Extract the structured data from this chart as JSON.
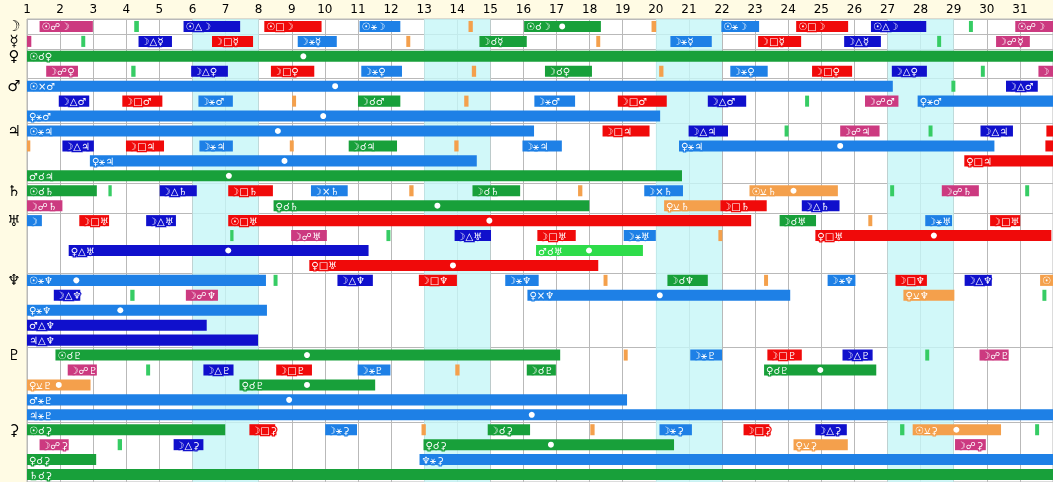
{
  "chart_data": {
    "type": "bar",
    "orientation": "horizontal",
    "categories": [
      "☽",
      "☿",
      "♀",
      null,
      "♂",
      null,
      null,
      "♃",
      null,
      null,
      null,
      "♄",
      null,
      "♅",
      null,
      null,
      null,
      "♆",
      null,
      null,
      null,
      null,
      "♇",
      null,
      null,
      null,
      null,
      "⚳",
      null,
      null,
      null
    ],
    "xlim": [
      1,
      32
    ],
    "xticks": [
      1,
      2,
      3,
      4,
      5,
      6,
      7,
      8,
      9,
      10,
      11,
      12,
      13,
      14,
      15,
      16,
      17,
      18,
      19,
      20,
      21,
      22,
      23,
      24,
      25,
      26,
      27,
      28,
      29,
      30,
      31
    ],
    "grid": true,
    "bands": [
      {
        "axis": "x",
        "from": 6,
        "to": 8,
        "color": "#c6f6f8"
      },
      {
        "axis": "x",
        "from": 13,
        "to": 15,
        "color": "#c6f6f8"
      },
      {
        "axis": "x",
        "from": 20,
        "to": 22,
        "color": "#c6f6f8"
      },
      {
        "axis": "x",
        "from": 27,
        "to": 29,
        "color": "#c6f6f8"
      }
    ],
    "series": [
      {
        "base": [
          1.38,
          1,
          1,
          1.58,
          1,
          1.96,
          1,
          1,
          1,
          2.9,
          1,
          1,
          1,
          1,
          7.14,
          2.26,
          9.53,
          1,
          1.81,
          1,
          1,
          1,
          1.86,
          2.23,
          1,
          1,
          1,
          1,
          1.38,
          1,
          1
        ],
        "values": [
          1.61,
          0.13,
          31,
          0.96,
          26.16,
          0.92,
          19.13,
          15.32,
          0.1,
          11.69,
          19.79,
          2.11,
          1.07,
          0.45,
          0.1,
          9.06,
          8.73,
          7.22,
          0.8,
          7.25,
          5.43,
          6.98,
          15.25,
          0.88,
          1.92,
          18.13,
          31,
          5.99,
          0.88,
          2.09,
          31
        ],
        "colors": [
          "#cc3a80",
          "#cc3a80",
          "#18a03a",
          "#cc3a80",
          "#1e80e6",
          "#1010cc",
          "#1e80e6",
          "#1e80e6",
          "#f4a04c",
          "#1e80e6",
          "#18a03a",
          "#18a03a",
          "#cc3a80",
          "#1e80e6",
          "#36cc64",
          "#1010cc",
          "#f00a0a",
          "#1e80e6",
          "#1010cc",
          "#1e80e6",
          "#1010cc",
          "#1010cc",
          "#18a03a",
          "#cc3a80",
          "#f4a04c",
          "#1e80e6",
          "#1e80e6",
          "#18a03a",
          "#cc3a80",
          "#18a03a",
          "#18a03a"
        ],
        "value_labels": [
          "☉☍☽",
          null,
          "☉☌♀",
          "☽☍♀",
          "☉×♂",
          "☽△♂",
          "♀⚹♂",
          "☉⚹♃",
          null,
          "♀⚹♃",
          "♂☌♃",
          "☉☌♄",
          "☽☍♄",
          "☽",
          null,
          "♀△♅",
          "♀□♅",
          "☉⚹♆",
          "☽△♆",
          "♀⚹♆",
          "♂△♆",
          "♃△♆",
          "☉☌♇",
          "☽☍♇",
          "♀⚺♇",
          "♂⚹♇",
          "♃⚹♇",
          "☉☌⚳",
          "☽☍⚳",
          "♀☌⚳",
          "♄☌⚳"
        ]
      },
      {
        "base": [
          4.24,
          2.64,
          null,
          4.15,
          28.93,
          3.88,
          null,
          18.39,
          2.07,
          29.32,
          null,
          3.46,
          8.45,
          2.58,
          8.98,
          16.38,
          null,
          8.45,
          4.12,
          null,
          null,
          null,
          19.03,
          4.6,
          7.42,
          null,
          null,
          7.72,
          3.74,
          12.86,
          null
        ],
        "values": [
          0.14,
          0.12,
          null,
          0.13,
          0.12,
          1.21,
          null,
          1.42,
          0.95,
          2.68,
          null,
          0.1,
          9.54,
          0.9,
          1.08,
          3.23,
          null,
          0.12,
          0.13,
          null,
          null,
          null,
          0.12,
          0.12,
          4.1,
          null,
          null,
          0.78,
          0.13,
          19.14,
          null
        ],
        "colors": [
          "#36cc64",
          "#36cc64",
          null,
          "#36cc64",
          "#36cc64",
          "#f00a0a",
          null,
          "#f00a0a",
          "#1010cc",
          "#f00a0a",
          null,
          "#36cc64",
          "#18a03a",
          "#f00a0a",
          "#cc3a80",
          "#2edc4a",
          null,
          "#36cc64",
          "#36cc64",
          null,
          null,
          null,
          "#f4a04c",
          "#36cc64",
          "#18a03a",
          null,
          null,
          "#f00a0a",
          "#36cc64",
          "#1e80e6",
          null
        ],
        "value_labels": [
          null,
          null,
          null,
          null,
          null,
          "☽□♂",
          null,
          "☽□♃",
          "☽△♃",
          "♀□♃",
          null,
          null,
          "♀☌♄",
          "☽□♅",
          "☽☍♅",
          "♂☌♅",
          null,
          null,
          null,
          null,
          null,
          null,
          null,
          null,
          "♀☌♇",
          null,
          null,
          "☽□⚳",
          null,
          "♆⚹⚳",
          null
        ]
      },
      {
        "base": [
          5.73,
          4.37,
          null,
          5.96,
          30.58,
          6.18,
          null,
          20.99,
          3.99,
          null,
          null,
          5.01,
          20.25,
          4.6,
          11.86,
          null,
          null,
          10.38,
          5.8,
          null,
          null,
          null,
          21.04,
          6.33,
          null,
          null,
          null,
          10.01,
          5.43,
          null,
          null
        ],
        "values": [
          1.71,
          1.01,
          null,
          1.11,
          0.96,
          1.04,
          null,
          1.19,
          1.15,
          null,
          null,
          1.12,
          1.7,
          0.9,
          0.12,
          null,
          null,
          1.07,
          0.97,
          null,
          null,
          null,
          0.96,
          0.91,
          null,
          null,
          null,
          0.96,
          0.9,
          null,
          null
        ],
        "colors": [
          "#1010cc",
          "#1010cc",
          null,
          "#1010cc",
          "#1010cc",
          "#1e80e6",
          null,
          "#1010cc",
          "#f00a0a",
          null,
          null,
          "#1010cc",
          "#f4a04c",
          "#1010cc",
          "#36cc64",
          null,
          null,
          "#1010cc",
          "#cc3a80",
          null,
          null,
          null,
          "#1e80e6",
          "#1010cc",
          null,
          null,
          null,
          "#1e80e6",
          "#1010cc",
          null,
          null
        ],
        "value_labels": [
          "☉△☽",
          "☽△☿",
          null,
          "☽△♀",
          "☽△♂",
          "☽⚹♂",
          null,
          "☽△♃",
          "☽□♃",
          null,
          null,
          "☽△♄",
          "♀⚺♄",
          "☽△♅",
          null,
          null,
          null,
          "☽△♆",
          "☽☍♆",
          null,
          null,
          null,
          "☽⚹♇",
          "☽△♇",
          null,
          null,
          null,
          "☽⚹⚳",
          "☽△⚳",
          null,
          null
        ]
      },
      {
        "base": [
          8.17,
          6.59,
          null,
          8.37,
          null,
          9.01,
          null,
          23.89,
          6.21,
          null,
          null,
          7.08,
          21.95,
          7.08,
          13.92,
          null,
          null,
          12.84,
          16.12,
          null,
          null,
          null,
          23.37,
          8.53,
          null,
          null,
          null,
          12.92,
          12.98,
          null,
          null
        ],
        "values": [
          1.73,
          1.24,
          null,
          1.31,
          null,
          0.12,
          null,
          0.12,
          1.01,
          null,
          null,
          1.35,
          1.4,
          15.8,
          1.1,
          null,
          null,
          1.15,
          7.94,
          null,
          null,
          null,
          1.04,
          1.08,
          null,
          null,
          null,
          0.13,
          7.57,
          null,
          null
        ],
        "colors": [
          "#f00a0a",
          "#f00a0a",
          null,
          "#f00a0a",
          null,
          "#f4a04c",
          null,
          "#36cc64",
          "#1e80e6",
          null,
          null,
          "#f00a0a",
          "#f00a0a",
          "#f00a0a",
          "#1010cc",
          null,
          null,
          "#f00a0a",
          "#1e80e6",
          null,
          null,
          null,
          "#f00a0a",
          "#f00a0a",
          null,
          null,
          null,
          "#f4a04c",
          "#18a03a",
          null,
          null
        ],
        "value_labels": [
          "☉□☽",
          "☽□☿",
          null,
          "☽□♀",
          null,
          null,
          null,
          null,
          "☽⚹♃",
          null,
          null,
          "☽□♄",
          "☽□♄",
          "☉□♅",
          "☽△♅",
          null,
          null,
          "☽□♆",
          "♀×♆",
          null,
          null,
          null,
          "☽□♇",
          "☽□♇",
          null,
          null,
          null,
          null,
          "♀☌⚳",
          null,
          null
        ]
      },
      {
        "base": [
          11.05,
          9.18,
          null,
          11.1,
          null,
          11,
          null,
          25.57,
          8.94,
          null,
          null,
          9.58,
          24.41,
          23.74,
          16.42,
          null,
          null,
          15.45,
          27.48,
          null,
          null,
          null,
          25.64,
          10.99,
          null,
          null,
          null,
          14.92,
          24.16,
          null,
          null
        ],
        "values": [
          1.23,
          1.18,
          null,
          1.23,
          null,
          1.28,
          null,
          1.19,
          0.12,
          null,
          null,
          1.11,
          1.14,
          1.1,
          1.16,
          null,
          null,
          1.01,
          1.54,
          null,
          null,
          null,
          0.91,
          0.99,
          null,
          null,
          null,
          1.28,
          1.64,
          null,
          null
        ],
        "colors": [
          "#1e80e6",
          "#1e80e6",
          null,
          "#1e80e6",
          null,
          "#18a03a",
          null,
          "#cc3a80",
          "#f4a04c",
          null,
          null,
          "#1e80e6",
          "#1010cc",
          "#18a03a",
          "#f00a0a",
          null,
          null,
          "#1e80e6",
          "#f4a04c",
          null,
          null,
          null,
          "#1010cc",
          "#1e80e6",
          null,
          null,
          null,
          "#18a03a",
          "#f4a04c",
          null,
          null
        ],
        "value_labels": [
          "☉⚹☽",
          "☽⚹☿",
          null,
          "☽⚹♀",
          null,
          "☽☌♂",
          null,
          "☽☍♃",
          null,
          null,
          null,
          "☽×♄",
          "☽△♄",
          "☽☌♅",
          "☽□♅",
          null,
          null,
          "☽⚹♆",
          "♀⚺♆",
          null,
          null,
          null,
          "☽△♇",
          "☽⚹♇",
          null,
          null,
          null,
          "☽☌⚳",
          "♀⚺⚳",
          null,
          null
        ]
      },
      {
        "base": [
          14.34,
          12.46,
          null,
          14.44,
          null,
          14.21,
          null,
          28.24,
          10.72,
          null,
          null,
          12.55,
          null,
          26.42,
          19.03,
          null,
          null,
          18.42,
          31.68,
          null,
          null,
          null,
          28.14,
          13.94,
          null,
          null,
          null,
          18.02,
          29.04,
          null,
          null
        ],
        "values": [
          0.13,
          0.12,
          null,
          0.13,
          null,
          0.13,
          null,
          0.12,
          1.46,
          null,
          null,
          0.13,
          null,
          0.12,
          0.97,
          null,
          null,
          0.12,
          0.12,
          null,
          null,
          null,
          0.12,
          0.13,
          null,
          null,
          null,
          0.13,
          0.93,
          null,
          null
        ],
        "colors": [
          "#f4a04c",
          "#f4a04c",
          null,
          "#f4a04c",
          null,
          "#f4a04c",
          null,
          "#36cc64",
          "#18a03a",
          null,
          null,
          "#f4a04c",
          null,
          "#f4a04c",
          "#1e80e6",
          null,
          null,
          "#f4a04c",
          "#36cc64",
          null,
          null,
          null,
          "#36cc64",
          "#f4a04c",
          null,
          null,
          null,
          "#f4a04c",
          "#cc3a80",
          null,
          null
        ],
        "value_labels": [
          null,
          null,
          null,
          null,
          null,
          null,
          null,
          null,
          "☽☌♃",
          null,
          null,
          null,
          null,
          null,
          "☽⚹♅",
          null,
          null,
          null,
          null,
          null,
          null,
          null,
          null,
          null,
          null,
          null,
          null,
          null,
          "☽☍⚳",
          null,
          null
        ]
      },
      {
        "base": [
          16.02,
          14.67,
          null,
          16.65,
          null,
          16.33,
          null,
          29.81,
          13.91,
          null,
          null,
          14.46,
          null,
          28.14,
          21.89,
          null,
          null,
          20.35,
          null,
          null,
          null,
          null,
          29.78,
          16.1,
          null,
          null,
          null,
          20.11,
          null,
          null,
          null
        ],
        "values": [
          2.32,
          1.43,
          null,
          1.42,
          null,
          1.23,
          null,
          0.98,
          0.13,
          null,
          null,
          1.44,
          null,
          0.81,
          0.12,
          null,
          null,
          1.22,
          null,
          null,
          null,
          null,
          0.88,
          0.88,
          null,
          null,
          null,
          0.98,
          null,
          null,
          null
        ],
        "colors": [
          "#18a03a",
          "#18a03a",
          null,
          "#18a03a",
          null,
          "#1e80e6",
          null,
          "#1010cc",
          "#f4a04c",
          null,
          null,
          "#18a03a",
          null,
          "#1e80e6",
          "#f4a04c",
          null,
          null,
          "#18a03a",
          null,
          null,
          null,
          null,
          "#cc3a80",
          "#18a03a",
          null,
          null,
          null,
          "#1e80e6",
          null,
          null,
          null
        ],
        "value_labels": [
          "☉☌☽",
          "☽☌☿",
          null,
          "☽☌♀",
          null,
          "☽⚹♂",
          null,
          "☽△♃",
          null,
          null,
          null,
          "☽☌♄",
          null,
          "☽⚹♅",
          null,
          null,
          null,
          "☽☌♆",
          null,
          null,
          null,
          null,
          "☽☍♇",
          "☽☌♇",
          null,
          null,
          null,
          "☽⚹⚳",
          null,
          null,
          null
        ]
      },
      {
        "base": [
          19.87,
          18.2,
          null,
          20.1,
          null,
          18.85,
          null,
          31.8,
          15.97,
          null,
          null,
          17.65,
          null,
          30.1,
          24.82,
          null,
          null,
          23.27,
          null,
          null,
          null,
          null,
          null,
          23.27,
          null,
          null,
          null,
          22.65,
          null,
          null,
          null
        ],
        "values": [
          0.14,
          0.12,
          null,
          0.13,
          null,
          1.48,
          null,
          0.2,
          1.19,
          null,
          null,
          0.13,
          null,
          0.91,
          7.13,
          null,
          null,
          0.12,
          null,
          null,
          null,
          null,
          null,
          3.39,
          null,
          null,
          null,
          0.78,
          null,
          null,
          null
        ],
        "colors": [
          "#f4a04c",
          "#f4a04c",
          null,
          "#f4a04c",
          null,
          "#f00a0a",
          null,
          "#f00a0a",
          "#1e80e6",
          null,
          null,
          "#f4a04c",
          null,
          "#f00a0a",
          "#f00a0a",
          null,
          null,
          "#f4a04c",
          null,
          null,
          null,
          null,
          null,
          "#18a03a",
          null,
          null,
          null,
          "#f00a0a",
          null,
          null,
          null
        ],
        "value_labels": [
          null,
          null,
          null,
          null,
          null,
          "☽□♂",
          null,
          null,
          "☽⚹♃",
          null,
          null,
          null,
          null,
          "☽□♅",
          "♀□♅",
          null,
          null,
          null,
          null,
          null,
          null,
          null,
          null,
          "♀☌♇",
          null,
          null,
          null,
          "☽□⚳",
          null,
          null,
          null
        ]
      },
      {
        "base": [
          21.98,
          20.44,
          null,
          22.25,
          null,
          21.57,
          null,
          null,
          20.7,
          null,
          null,
          19.65,
          null,
          null,
          null,
          null,
          null,
          25.19,
          null,
          null,
          null,
          null,
          null,
          null,
          null,
          null,
          null,
          24.82,
          null,
          null,
          null
        ],
        "values": [
          1.14,
          1.25,
          null,
          1.13,
          null,
          1.16,
          null,
          null,
          9.53,
          null,
          null,
          1.17,
          null,
          null,
          null,
          null,
          null,
          0.84,
          null,
          null,
          null,
          null,
          null,
          null,
          null,
          null,
          null,
          0.95,
          null,
          null,
          null
        ],
        "colors": [
          "#1e80e6",
          "#1e80e6",
          null,
          "#1e80e6",
          null,
          "#1010cc",
          null,
          null,
          "#1e80e6",
          null,
          null,
          "#1e80e6",
          null,
          null,
          null,
          null,
          null,
          "#1e80e6",
          null,
          null,
          null,
          null,
          null,
          null,
          null,
          null,
          null,
          "#1010cc",
          null,
          null,
          null
        ],
        "value_labels": [
          "☉⚹☽",
          "☽⚹☿",
          null,
          "☽⚹♀",
          null,
          "☽△♂",
          null,
          null,
          "♀⚹♃",
          null,
          null,
          "☽×♄",
          null,
          null,
          null,
          null,
          null,
          "☽⚹♆",
          null,
          null,
          null,
          null,
          null,
          null,
          null,
          null,
          null,
          "☽△⚳",
          null,
          null,
          null
        ]
      },
      {
        "base": [
          24.24,
          23.09,
          null,
          24.72,
          null,
          24.51,
          null,
          null,
          31.77,
          null,
          null,
          22.83,
          null,
          null,
          null,
          null,
          null,
          27.24,
          null,
          null,
          null,
          null,
          null,
          null,
          null,
          null,
          null,
          27.38,
          null,
          null,
          null
        ],
        "values": [
          1.57,
          1.3,
          null,
          1.21,
          null,
          0.12,
          null,
          null,
          0.23,
          null,
          null,
          2.67,
          null,
          null,
          null,
          null,
          null,
          0.95,
          null,
          null,
          null,
          null,
          null,
          null,
          null,
          null,
          null,
          0.13,
          null,
          null,
          null
        ],
        "colors": [
          "#f00a0a",
          "#f00a0a",
          null,
          "#f00a0a",
          null,
          "#36cc64",
          null,
          null,
          "#f00a0a",
          null,
          null,
          "#f4a04c",
          null,
          null,
          null,
          null,
          null,
          "#f00a0a",
          null,
          null,
          null,
          null,
          null,
          null,
          null,
          null,
          null,
          "#36cc64",
          null,
          null,
          null
        ],
        "value_labels": [
          "☉□☽",
          "☽□☿",
          null,
          "☽□♀",
          null,
          null,
          null,
          null,
          null,
          null,
          null,
          "☉⚺♄",
          null,
          null,
          null,
          null,
          null,
          "☽□♆",
          null,
          null,
          null,
          null,
          null,
          null,
          null,
          null,
          null,
          null,
          null,
          null,
          null
        ]
      },
      {
        "base": [
          26.5,
          25.69,
          null,
          27.13,
          null,
          26.32,
          null,
          null,
          null,
          null,
          null,
          27.08,
          null,
          null,
          null,
          null,
          null,
          29.33,
          null,
          null,
          null,
          null,
          null,
          null,
          null,
          null,
          null,
          27.76,
          null,
          null,
          null
        ],
        "values": [
          1.67,
          1.11,
          null,
          1.06,
          null,
          1.01,
          null,
          null,
          null,
          null,
          null,
          0.12,
          null,
          null,
          null,
          null,
          null,
          0.82,
          null,
          null,
          null,
          null,
          null,
          null,
          null,
          null,
          null,
          2.67,
          null,
          null,
          null
        ],
        "colors": [
          "#1010cc",
          "#1010cc",
          null,
          "#1010cc",
          null,
          "#cc3a80",
          null,
          null,
          null,
          null,
          null,
          "#36cc64",
          null,
          null,
          null,
          null,
          null,
          "#1010cc",
          null,
          null,
          null,
          null,
          null,
          null,
          null,
          null,
          null,
          "#f4a04c",
          null,
          null,
          null
        ],
        "value_labels": [
          "☉△☽",
          "☽△☿",
          null,
          "☽△♀",
          null,
          "☽☍♂",
          null,
          null,
          null,
          null,
          null,
          null,
          null,
          null,
          null,
          null,
          null,
          "☽△♆",
          null,
          null,
          null,
          null,
          null,
          null,
          null,
          null,
          null,
          "☉⚺⚳",
          null,
          null,
          null
        ]
      },
      {
        "base": [
          29.46,
          28.5,
          null,
          29.82,
          null,
          27.91,
          null,
          null,
          null,
          null,
          null,
          28.64,
          null,
          null,
          null,
          null,
          null,
          31.61,
          null,
          null,
          null,
          null,
          null,
          null,
          null,
          null,
          null,
          31.46,
          null,
          null,
          null
        ],
        "values": [
          0.12,
          0.12,
          null,
          0.12,
          null,
          4.09,
          null,
          null,
          null,
          null,
          null,
          1.12,
          null,
          null,
          null,
          null,
          null,
          0.39,
          null,
          null,
          null,
          null,
          null,
          null,
          null,
          null,
          null,
          0.12,
          null,
          null,
          null
        ],
        "colors": [
          "#36cc64",
          "#36cc64",
          null,
          "#36cc64",
          null,
          "#1e80e6",
          null,
          null,
          null,
          null,
          null,
          "#cc3a80",
          null,
          null,
          null,
          null,
          null,
          "#f4a04c",
          null,
          null,
          null,
          null,
          null,
          null,
          null,
          null,
          null,
          "#36cc64",
          null,
          null,
          null
        ],
        "value_labels": [
          null,
          null,
          null,
          null,
          null,
          "♀⚹♂",
          null,
          null,
          null,
          null,
          null,
          "☽☍♄",
          null,
          null,
          null,
          null,
          null,
          "☉",
          null,
          null,
          null,
          null,
          null,
          null,
          null,
          null,
          null,
          null,
          null,
          null,
          null
        ]
      },
      {
        "base": [
          30.86,
          30.28,
          null,
          31.56,
          null,
          null,
          null,
          null,
          null,
          null,
          null,
          31.16,
          null,
          null,
          null,
          null,
          null,
          null,
          null,
          null,
          null,
          null,
          null,
          null,
          null,
          null,
          null,
          null,
          null,
          null,
          null
        ],
        "values": [
          1.14,
          1.02,
          null,
          0.44,
          null,
          null,
          null,
          null,
          null,
          null,
          null,
          0.12,
          null,
          null,
          null,
          null,
          null,
          null,
          null,
          null,
          null,
          null,
          null,
          null,
          null,
          null,
          null,
          null,
          null,
          null,
          null
        ],
        "colors": [
          "#cc3a80",
          "#cc3a80",
          null,
          "#cc3a80",
          null,
          null,
          null,
          null,
          null,
          null,
          null,
          "#36cc64",
          null,
          null,
          null,
          null,
          null,
          null,
          null,
          null,
          null,
          null,
          null,
          null,
          null,
          null,
          null,
          null,
          null,
          null,
          null
        ],
        "value_labels": [
          "☉☍☽",
          "☽☍☿",
          null,
          "☽",
          null,
          null,
          null,
          null,
          null,
          null,
          null,
          null,
          null,
          null,
          null,
          null,
          null,
          null,
          null,
          null,
          null,
          null,
          null,
          null,
          null,
          null,
          null,
          null,
          null,
          null,
          null
        ]
      },
      {
        "type": "scatter",
        "marker": "circle",
        "color": "#ffffff",
        "values": [
          17.17,
          null,
          9.35,
          null,
          10.31,
          null,
          9.95,
          8.58,
          25.57,
          8.78,
          7.1,
          24.16,
          13.4,
          14.97,
          28.4,
          7.08,
          13.87,
          2.49,
          20.12,
          3.82,
          null,
          null,
          9.46,
          24.97,
          1.96,
          8.92,
          16.25,
          29.08,
          16.83,
          null,
          null
        ]
      },
      {
        "type": "scatter",
        "marker": "circle",
        "color": "#ffffff",
        "values": [
          null,
          null,
          null,
          null,
          null,
          null,
          null,
          null,
          null,
          null,
          null,
          null,
          null,
          null,
          null,
          17.98,
          null,
          null,
          null,
          null,
          null,
          null,
          null,
          null,
          9.46,
          null,
          null,
          null,
          null,
          null,
          null
        ]
      }
    ]
  }
}
